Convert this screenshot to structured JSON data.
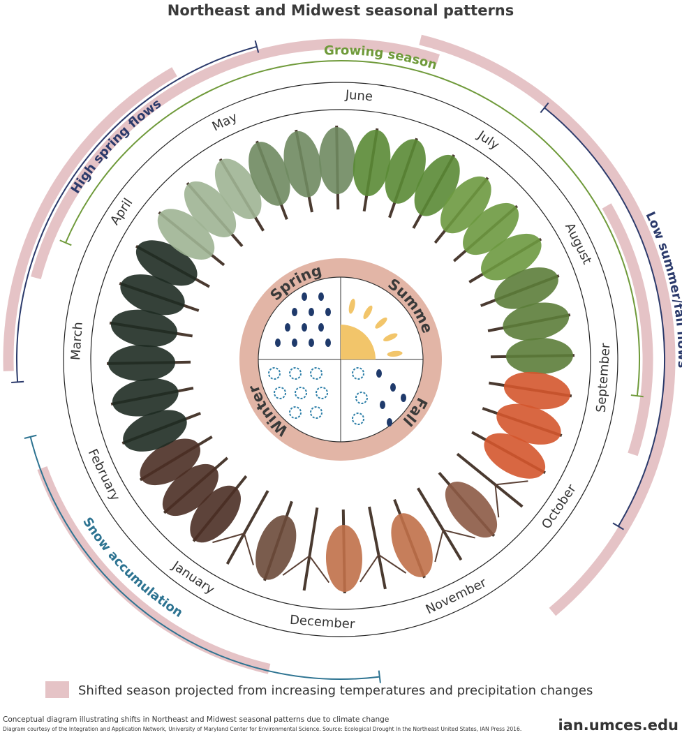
{
  "title": "Northeast and Midwest seasonal patterns",
  "months": [
    "January",
    "February",
    "March",
    "April",
    "May",
    "June",
    "July",
    "August",
    "September",
    "October",
    "November",
    "December"
  ],
  "seasons": [
    "Spring",
    "Summer",
    "Fall",
    "Winter"
  ],
  "arcs": {
    "growing_season": "Growing season",
    "high_spring_flows": "High spring flows",
    "low_flows": "Low summer/fall flows",
    "snow_accumulation": "Snow accumulation"
  },
  "legend": "Shifted season projected from increasing temperatures and precipitation changes",
  "footer": {
    "caption": "Conceptual diagram illustrating shifts in Northeast and Midwest seasonal patterns due to climate change",
    "credit": "Diagram courtesy of the Integration and Application Network, University of Maryland Center for Environmental Science. Source: Ecological Drought In the Northeast United States, IAN Press 2016.",
    "logo": "ian.umces.edu"
  }
}
